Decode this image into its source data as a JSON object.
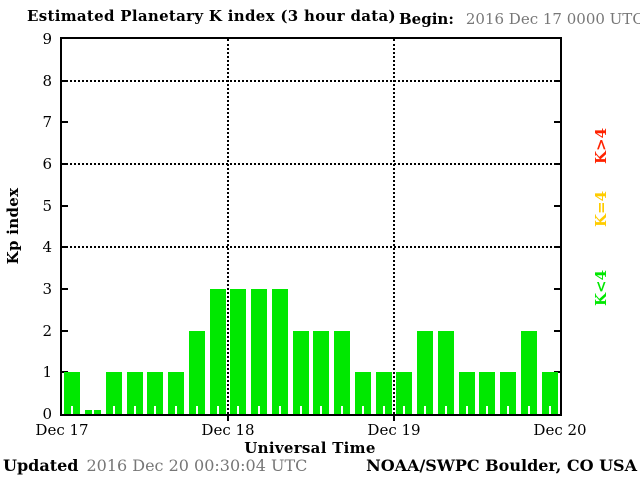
{
  "header": {
    "title": "Estimated Planetary K index (3 hour data)",
    "begin_label": "Begin:",
    "begin_value": "2016 Dec 17 0000 UTC"
  },
  "chart_data": {
    "type": "bar",
    "title": "Estimated Planetary K index (3 hour data)",
    "xlabel": "Universal Time",
    "ylabel": "Kp index",
    "ylim": [
      0,
      9
    ],
    "yticks": [
      0,
      1,
      2,
      3,
      4,
      5,
      6,
      7,
      8,
      9
    ],
    "grid_y_dotted": [
      4,
      6,
      8
    ],
    "grid_on": true,
    "hours_per_bar": 3,
    "x_day_labels": [
      "Dec 17",
      "Dec 18",
      "Dec 19",
      "Dec 20"
    ],
    "values": [
      1,
      0,
      1,
      1,
      1,
      1,
      2,
      3,
      3,
      3,
      3,
      2,
      2,
      2,
      1,
      1,
      1,
      2,
      2,
      1,
      1,
      1,
      2,
      1
    ],
    "bar_color": "#00e800",
    "legend_position": "right-rotated",
    "legend": [
      {
        "label": "K>4",
        "color": "#ff2200"
      },
      {
        "label": "K=4",
        "color": "#ffcc00"
      },
      {
        "label": "K<4",
        "color": "#00e800"
      }
    ]
  },
  "footer": {
    "updated_label": "Updated",
    "updated_value": "2016 Dec 20 00:30:04 UTC",
    "credit": "NOAA/SWPC Boulder, CO USA"
  },
  "colors": {
    "bar_green": "#00e800",
    "legend_yellow": "#ffcc00",
    "legend_red": "#ff2200",
    "muted_text": "#777777",
    "axis_black": "#000000"
  }
}
